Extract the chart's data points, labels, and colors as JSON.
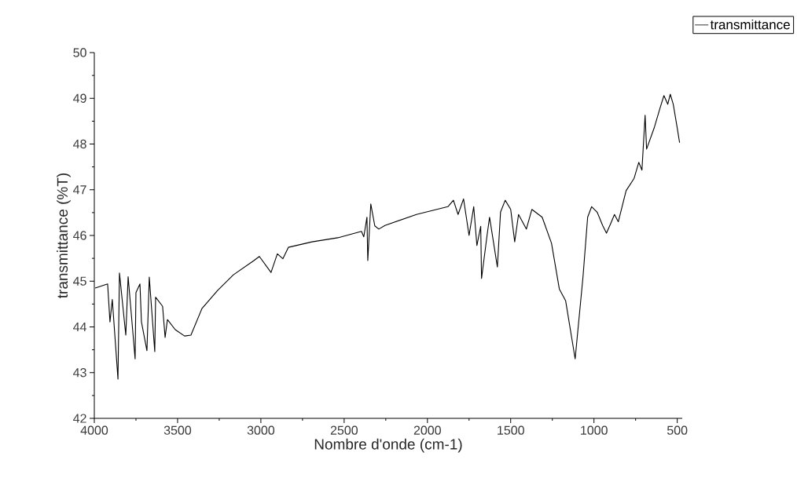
{
  "chart_data": {
    "type": "line",
    "xlabel": "Nombre d'onde (cm-1)",
    "ylabel": "transmittance (%T)",
    "x": [
      3995,
      3920,
      3906,
      3892,
      3858,
      3849,
      3811,
      3797,
      3755,
      3750,
      3726,
      3717,
      3684,
      3670,
      3637,
      3632,
      3590,
      3575,
      3561,
      3514,
      3458,
      3420,
      3354,
      3259,
      3165,
      3042,
      3009,
      2939,
      2901,
      2868,
      2835,
      2693,
      2538,
      2396,
      2382,
      2363,
      2358,
      2340,
      2316,
      2292,
      2255,
      2066,
      1910,
      1877,
      1844,
      1816,
      1783,
      1750,
      1722,
      1703,
      1680,
      1675,
      1642,
      1627,
      1580,
      1561,
      1533,
      1500,
      1476,
      1453,
      1406,
      1373,
      1311,
      1255,
      1208,
      1170,
      1113,
      1066,
      1038,
      1014,
      981,
      948,
      925,
      901,
      877,
      854,
      807,
      759,
      731,
      712,
      693,
      684,
      637,
      604,
      580,
      557,
      542,
      524,
      500,
      486
    ],
    "series": [
      {
        "name": "transmittance",
        "color": "#000000",
        "values": [
          44.85,
          44.94,
          44.11,
          44.6,
          42.86,
          45.18,
          43.82,
          45.1,
          43.3,
          44.75,
          44.94,
          44.11,
          43.48,
          45.09,
          43.46,
          44.65,
          44.45,
          43.77,
          44.16,
          43.94,
          43.8,
          43.82,
          44.4,
          44.8,
          45.14,
          45.45,
          45.54,
          45.19,
          45.6,
          45.49,
          45.74,
          45.86,
          45.95,
          46.09,
          45.97,
          46.4,
          45.45,
          46.69,
          46.21,
          46.14,
          46.22,
          46.46,
          46.6,
          46.63,
          46.77,
          46.46,
          46.8,
          46.0,
          46.63,
          45.78,
          46.2,
          45.06,
          46.0,
          46.4,
          45.31,
          46.51,
          46.77,
          46.57,
          45.86,
          46.46,
          46.14,
          46.57,
          46.4,
          45.83,
          44.83,
          44.57,
          43.3,
          45.09,
          46.4,
          46.63,
          46.51,
          46.22,
          46.05,
          46.25,
          46.46,
          46.3,
          46.98,
          47.25,
          47.6,
          47.43,
          48.63,
          47.89,
          48.37,
          48.78,
          49.06,
          48.87,
          49.09,
          48.87,
          48.35,
          48.03
        ]
      }
    ],
    "xlim": [
      4000,
      470
    ],
    "ylim": [
      42,
      50
    ],
    "xticks": [
      4000,
      3500,
      3000,
      2500,
      2000,
      1500,
      1000,
      500
    ],
    "yticks": [
      42,
      43,
      44,
      45,
      46,
      47,
      48,
      49,
      50
    ],
    "legend": "top right"
  }
}
